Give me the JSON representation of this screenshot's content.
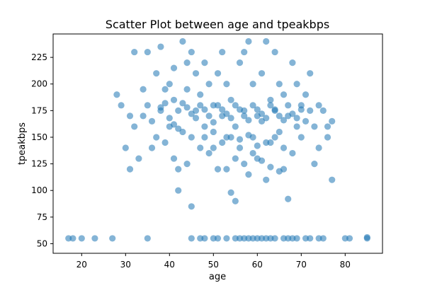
{
  "chart_data": {
    "type": "scatter",
    "title": "Scatter Plot between age and tpeakbps",
    "xlabel": "age",
    "ylabel": "tpeakbps",
    "xlim": [
      13.5,
      88.5
    ],
    "ylim": [
      41,
      247
    ],
    "x_ticks": [
      20,
      30,
      40,
      50,
      60,
      70,
      80
    ],
    "y_ticks": [
      50,
      75,
      100,
      125,
      150,
      175,
      200,
      225
    ],
    "grid": false,
    "legend": "none",
    "colors": {
      "marker": "#1f77b4",
      "frame": "#000000",
      "background": "#ffffff"
    },
    "marker_opacity": 0.55,
    "points": [
      [
        17,
        55
      ],
      [
        18,
        55
      ],
      [
        20,
        55
      ],
      [
        23,
        55
      ],
      [
        27,
        55
      ],
      [
        35,
        55
      ],
      [
        45,
        55
      ],
      [
        47,
        55
      ],
      [
        48,
        55
      ],
      [
        50,
        55
      ],
      [
        51,
        55
      ],
      [
        53,
        55
      ],
      [
        55,
        55
      ],
      [
        56,
        55
      ],
      [
        57,
        55
      ],
      [
        58,
        55
      ],
      [
        59,
        55
      ],
      [
        60,
        55
      ],
      [
        61,
        55
      ],
      [
        62,
        55
      ],
      [
        63,
        55
      ],
      [
        64,
        55
      ],
      [
        66,
        55
      ],
      [
        67,
        55
      ],
      [
        68,
        55
      ],
      [
        69,
        55
      ],
      [
        71,
        55
      ],
      [
        72,
        55
      ],
      [
        74,
        55
      ],
      [
        75,
        55
      ],
      [
        80,
        55
      ],
      [
        81,
        55
      ],
      [
        85,
        55
      ],
      [
        85,
        56
      ],
      [
        28,
        190
      ],
      [
        29,
        180
      ],
      [
        30,
        140
      ],
      [
        31,
        120
      ],
      [
        31,
        170
      ],
      [
        32,
        160
      ],
      [
        32,
        230
      ],
      [
        33,
        130
      ],
      [
        34,
        195
      ],
      [
        34,
        170
      ],
      [
        35,
        180
      ],
      [
        35,
        230
      ],
      [
        36,
        140
      ],
      [
        36,
        165
      ],
      [
        37,
        210
      ],
      [
        37,
        150
      ],
      [
        38,
        235
      ],
      [
        38,
        175
      ],
      [
        39,
        195
      ],
      [
        39,
        145
      ],
      [
        40,
        200
      ],
      [
        40,
        160
      ],
      [
        41,
        215
      ],
      [
        41,
        185
      ],
      [
        41,
        130
      ],
      [
        42,
        120
      ],
      [
        42,
        100
      ],
      [
        42,
        175
      ],
      [
        43,
        240
      ],
      [
        43,
        155
      ],
      [
        44,
        220
      ],
      [
        44,
        195
      ],
      [
        44,
        125
      ],
      [
        45,
        230
      ],
      [
        45,
        85
      ],
      [
        45,
        150
      ],
      [
        46,
        210
      ],
      [
        46,
        175
      ],
      [
        47,
        140
      ],
      [
        47,
        190
      ],
      [
        48,
        220
      ],
      [
        48,
        160
      ],
      [
        49,
        200
      ],
      [
        49,
        135
      ],
      [
        50,
        180
      ],
      [
        50,
        155
      ],
      [
        51,
        210
      ],
      [
        51,
        120
      ],
      [
        52,
        230
      ],
      [
        52,
        170
      ],
      [
        53,
        150
      ],
      [
        53,
        200
      ],
      [
        54,
        98
      ],
      [
        54,
        185
      ],
      [
        55,
        90
      ],
      [
        55,
        160
      ],
      [
        56,
        220
      ],
      [
        56,
        140
      ],
      [
        57,
        230
      ],
      [
        57,
        175
      ],
      [
        58,
        240
      ],
      [
        58,
        115
      ],
      [
        59,
        200
      ],
      [
        59,
        150
      ],
      [
        60,
        170
      ],
      [
        60,
        130
      ],
      [
        61,
        210
      ],
      [
        61,
        165
      ],
      [
        62,
        110
      ],
      [
        62,
        240
      ],
      [
        63,
        185
      ],
      [
        63,
        145
      ],
      [
        64,
        230
      ],
      [
        64,
        175
      ],
      [
        65,
        200
      ],
      [
        65,
        155
      ],
      [
        66,
        190
      ],
      [
        66,
        120
      ],
      [
        67,
        170
      ],
      [
        67,
        92
      ],
      [
        68,
        220
      ],
      [
        68,
        135
      ],
      [
        69,
        200
      ],
      [
        69,
        160
      ],
      [
        70,
        180
      ],
      [
        70,
        150
      ],
      [
        71,
        190
      ],
      [
        71,
        165
      ],
      [
        72,
        210
      ],
      [
        72,
        175
      ],
      [
        73,
        160
      ],
      [
        73,
        125
      ],
      [
        74,
        180
      ],
      [
        74,
        140
      ],
      [
        75,
        175
      ],
      [
        76,
        160
      ],
      [
        76,
        150
      ],
      [
        77,
        165
      ],
      [
        77,
        110
      ],
      [
        38,
        178
      ],
      [
        39,
        182
      ],
      [
        40,
        168
      ],
      [
        41,
        162
      ],
      [
        42,
        158
      ],
      [
        43,
        182
      ],
      [
        44,
        178
      ],
      [
        45,
        172
      ],
      [
        46,
        168
      ],
      [
        47,
        180
      ],
      [
        48,
        176
      ],
      [
        49,
        170
      ],
      [
        50,
        164
      ],
      [
        51,
        180
      ],
      [
        52,
        176
      ],
      [
        53,
        172
      ],
      [
        54,
        168
      ],
      [
        55,
        180
      ],
      [
        56,
        176
      ],
      [
        57,
        170
      ],
      [
        58,
        166
      ],
      [
        59,
        180
      ],
      [
        60,
        176
      ],
      [
        61,
        172
      ],
      [
        62,
        168
      ],
      [
        63,
        180
      ],
      [
        64,
        176
      ],
      [
        65,
        170
      ],
      [
        66,
        166
      ],
      [
        67,
        180
      ],
      [
        68,
        172
      ],
      [
        69,
        168
      ],
      [
        70,
        176
      ],
      [
        48,
        150
      ],
      [
        50,
        140
      ],
      [
        52,
        145
      ],
      [
        54,
        150
      ],
      [
        56,
        148
      ],
      [
        58,
        152
      ],
      [
        60,
        142
      ],
      [
        62,
        145
      ],
      [
        64,
        150
      ],
      [
        66,
        140
      ],
      [
        53,
        120
      ],
      [
        55,
        130
      ],
      [
        57,
        125
      ],
      [
        59,
        135
      ],
      [
        61,
        128
      ],
      [
        63,
        122
      ],
      [
        65,
        118
      ]
    ]
  }
}
